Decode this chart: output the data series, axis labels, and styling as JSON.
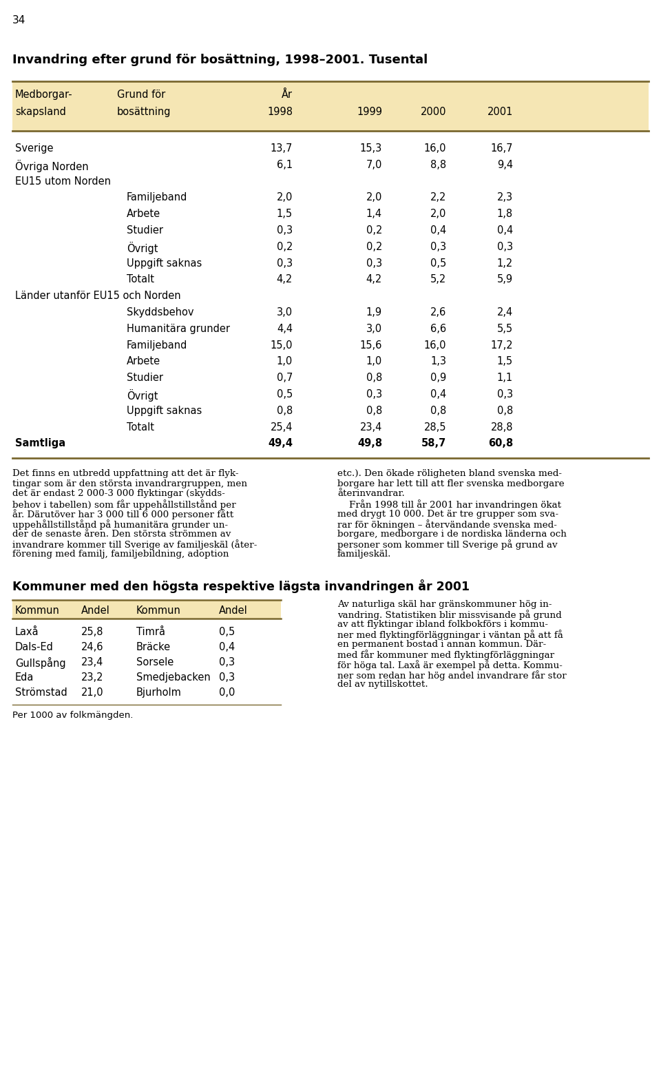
{
  "page_number": "34",
  "title": "Invandring efter grund för bosättning, 1998–2001. Tusental",
  "header_bg": "#F5E6B4",
  "header_line_color": "#7A6830",
  "col1_header1": "Medborgar-",
  "col1_header2": "skapsland",
  "col2_header1": "Grund för",
  "col2_header2": "bosättning",
  "col3_header1": "År",
  "col3_header2": "1998",
  "col4_header": "1999",
  "col5_header": "2000",
  "col6_header": "2001",
  "rows": [
    {
      "col1": "Sverige",
      "col2": "",
      "v1": "13,7",
      "v2": "15,3",
      "v3": "16,0",
      "v4": "16,7",
      "bold": false
    },
    {
      "col1": "Övriga Norden",
      "col2": "",
      "v1": "6,1",
      "v2": "7,0",
      "v3": "8,8",
      "v4": "9,4",
      "bold": false
    },
    {
      "col1": "EU15 utom Norden",
      "col2": "",
      "v1": "",
      "v2": "",
      "v3": "",
      "v4": "",
      "bold": false
    },
    {
      "col1": "",
      "col2": "Familjeband",
      "v1": "2,0",
      "v2": "2,0",
      "v3": "2,2",
      "v4": "2,3",
      "bold": false
    },
    {
      "col1": "",
      "col2": "Arbete",
      "v1": "1,5",
      "v2": "1,4",
      "v3": "2,0",
      "v4": "1,8",
      "bold": false
    },
    {
      "col1": "",
      "col2": "Studier",
      "v1": "0,3",
      "v2": "0,2",
      "v3": "0,4",
      "v4": "0,4",
      "bold": false
    },
    {
      "col1": "",
      "col2": "Övrigt",
      "v1": "0,2",
      "v2": "0,2",
      "v3": "0,3",
      "v4": "0,3",
      "bold": false
    },
    {
      "col1": "",
      "col2": "Uppgift saknas",
      "v1": "0,3",
      "v2": "0,3",
      "v3": "0,5",
      "v4": "1,2",
      "bold": false
    },
    {
      "col1": "",
      "col2": "Totalt",
      "v1": "4,2",
      "v2": "4,2",
      "v3": "5,2",
      "v4": "5,9",
      "bold": false
    },
    {
      "col1": "Länder utanför EU15 och Norden",
      "col2": "",
      "v1": "",
      "v2": "",
      "v3": "",
      "v4": "",
      "bold": false
    },
    {
      "col1": "",
      "col2": "Skyddsbehov",
      "v1": "3,0",
      "v2": "1,9",
      "v3": "2,6",
      "v4": "2,4",
      "bold": false
    },
    {
      "col1": "",
      "col2": "Humanitära grunder",
      "v1": "4,4",
      "v2": "3,0",
      "v3": "6,6",
      "v4": "5,5",
      "bold": false
    },
    {
      "col1": "",
      "col2": "Familjeband",
      "v1": "15,0",
      "v2": "15,6",
      "v3": "16,0",
      "v4": "17,2",
      "bold": false
    },
    {
      "col1": "",
      "col2": "Arbete",
      "v1": "1,0",
      "v2": "1,0",
      "v3": "1,3",
      "v4": "1,5",
      "bold": false
    },
    {
      "col1": "",
      "col2": "Studier",
      "v1": "0,7",
      "v2": "0,8",
      "v3": "0,9",
      "v4": "1,1",
      "bold": false
    },
    {
      "col1": "",
      "col2": "Övrigt",
      "v1": "0,5",
      "v2": "0,3",
      "v3": "0,4",
      "v4": "0,3",
      "bold": false
    },
    {
      "col1": "",
      "col2": "Uppgift saknas",
      "v1": "0,8",
      "v2": "0,8",
      "v3": "0,8",
      "v4": "0,8",
      "bold": false
    },
    {
      "col1": "",
      "col2": "Totalt",
      "v1": "25,4",
      "v2": "23,4",
      "v3": "28,5",
      "v4": "28,8",
      "bold": false
    },
    {
      "col1": "Samtliga",
      "col2": "",
      "v1": "49,4",
      "v2": "49,8",
      "v3": "58,7",
      "v4": "60,8",
      "bold": true
    }
  ],
  "left_lines": [
    "Det finns en utbredd uppfattning att det är flyk-",
    "tingar som är den största invandrargruppen, men",
    "det är endast 2 000-3 000 flyktingar (skydds-",
    "behov i tabellen) som får uppehållstillstånd per",
    "år. Därutöver har 3 000 till 6 000 personer fått",
    "uppehållstillstånd på humanitära grunder un-",
    "der de senaste åren. Den största strömmen av",
    "invandrare kommer till Sverige av familjeskäl (åter-",
    "förening med familj, familjebildning, adoption"
  ],
  "right_lines": [
    "etc.). Den ökade röligheten bland svenska med-",
    "borgare har lett till att fler svenska medborgare",
    "återinvandrar.",
    "    Från 1998 till år 2001 har invandringen ökat",
    "med drygt 10 000. Det är tre grupper som sva-",
    "rar för ökningen – återvändande svenska med-",
    "borgare, medborgare i de nordiska länderna och",
    "personer som kommer till Sverige på grund av",
    "familjeskäl."
  ],
  "section2_title": "Kommuner med den högsta respektive lägsta invandringen år 2001",
  "table2_header_bg": "#F5E6B4",
  "table2_cols": [
    "Kommun",
    "Andel",
    "Kommun",
    "Andel"
  ],
  "table2_rows": [
    [
      "Laxå",
      "25,8",
      "Timrå",
      "0,5"
    ],
    [
      "Dals-Ed",
      "24,6",
      "Bräcke",
      "0,4"
    ],
    [
      "Gullspång",
      "23,4",
      "Sorsele",
      "0,3"
    ],
    [
      "Eda",
      "23,2",
      "Smedjebacken",
      "0,3"
    ],
    [
      "Strömstad",
      "21,0",
      "Bjurholm",
      "0,0"
    ]
  ],
  "table2_footnote": "Per 1000 av folkmängden.",
  "body2_lines": [
    "Av naturliga skäl har gränskommuner hög in-",
    "vandring. Statistiken blir missvisande på grund",
    "av att flyktingar ibland folkbokförs i kommu-",
    "ner med flyktingförläggningar i väntan på att få",
    "en permanent bostad i annan kommun. Där-",
    "med får kommuner med flyktingförläggningar",
    "för höga tal. Laxå är exempel på detta. Kommu-",
    "ner som redan har hög andel invandrare får stor",
    "del av nytillskottet."
  ]
}
